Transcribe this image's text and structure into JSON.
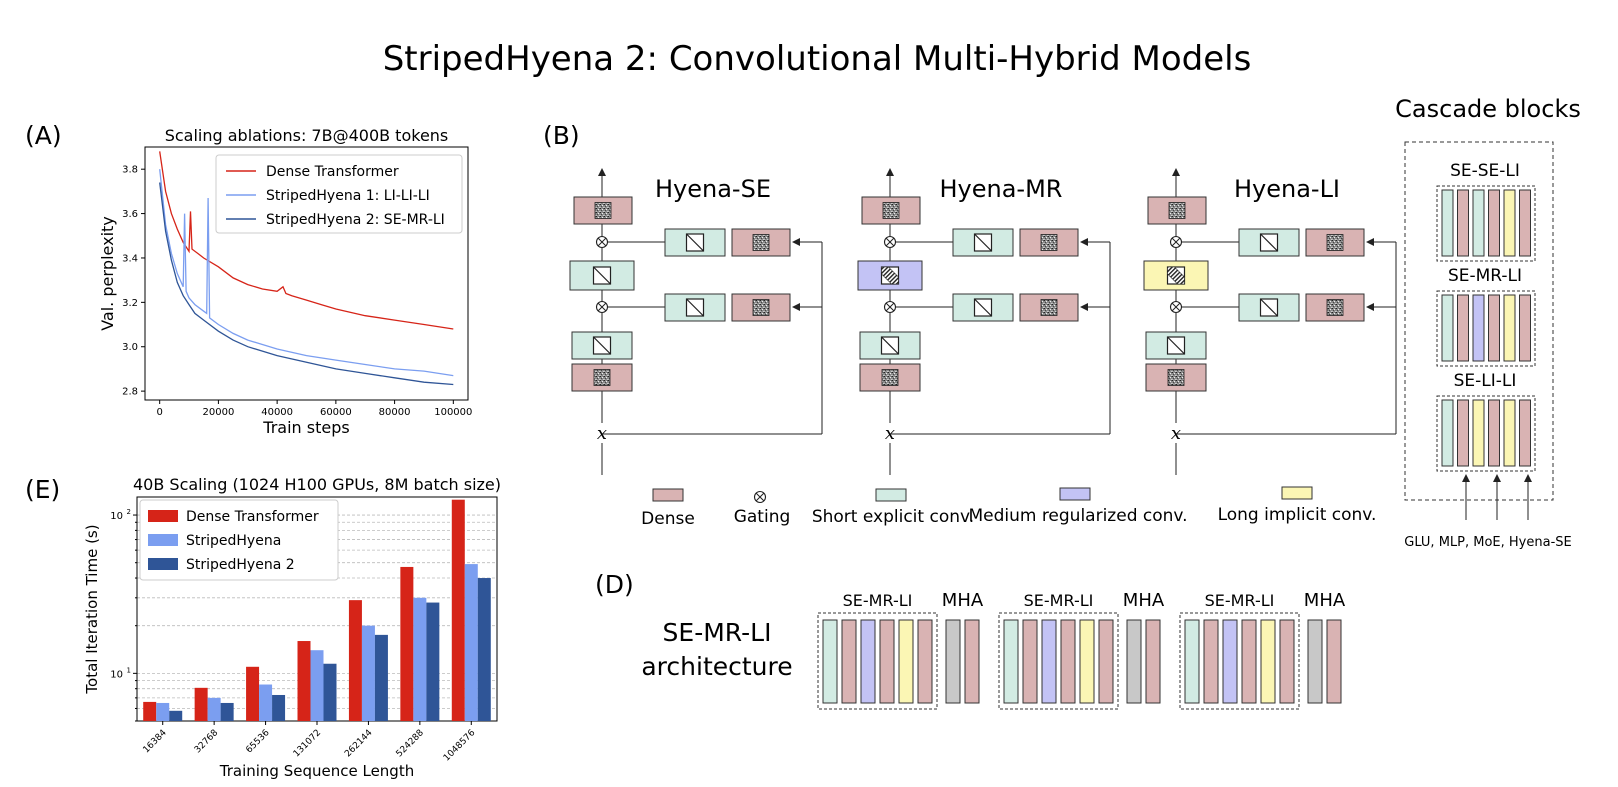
{
  "title": "StripedHyena 2: Convolutional Multi-Hybrid Models",
  "panels": {
    "a": "(A)",
    "b": "(B)",
    "d": "(D)",
    "e": "(E)"
  },
  "colors": {
    "dense": "#d9b3b3",
    "short_explicit": "#d2ebe3",
    "medium_regularized": "#c3c3f5",
    "long_implicit": "#fbf6b4",
    "mha": "#c8c8c8",
    "red": "#d62418",
    "light_blue": "#7b9ef0",
    "dark_blue": "#2f5597"
  },
  "chart_data": [
    {
      "type": "line",
      "title": "Scaling ablations: 7B@400B tokens",
      "xlabel": "Train steps",
      "ylabel": "Val. perplexity",
      "xlim": [
        -5000,
        105000
      ],
      "ylim": [
        2.76,
        3.9
      ],
      "xticks": [
        "0",
        "20000",
        "40000",
        "60000",
        "80000",
        "100000"
      ],
      "yticks": [
        "2.8",
        "3.0",
        "3.2",
        "3.4",
        "3.6",
        "3.8"
      ],
      "legend_position": "top-right",
      "series": [
        {
          "name": "Dense Transformer",
          "color": "#d62418",
          "x": [
            0,
            2000,
            4000,
            6000,
            8000,
            9000,
            10000,
            10500,
            11000,
            13000,
            15000,
            20000,
            25000,
            30000,
            35000,
            40000,
            42000,
            43000,
            45000,
            50000,
            55000,
            60000,
            70000,
            80000,
            90000,
            100000
          ],
          "y": [
            3.88,
            3.7,
            3.6,
            3.53,
            3.47,
            3.45,
            3.43,
            3.61,
            3.44,
            3.42,
            3.4,
            3.36,
            3.31,
            3.28,
            3.26,
            3.25,
            3.27,
            3.24,
            3.23,
            3.21,
            3.19,
            3.17,
            3.14,
            3.12,
            3.1,
            3.08
          ]
        },
        {
          "name": "StripedHyena 1: LI-LI-LI",
          "color": "#7b9ef0",
          "x": [
            0,
            2000,
            4000,
            6000,
            8000,
            8500,
            9000,
            10000,
            12000,
            15000,
            16000,
            16500,
            17000,
            20000,
            25000,
            30000,
            40000,
            50000,
            60000,
            70000,
            80000,
            90000,
            100000
          ],
          "y": [
            3.8,
            3.55,
            3.42,
            3.33,
            3.27,
            3.6,
            3.25,
            3.22,
            3.19,
            3.16,
            3.15,
            3.67,
            3.13,
            3.1,
            3.06,
            3.03,
            2.99,
            2.96,
            2.94,
            2.92,
            2.9,
            2.89,
            2.87
          ]
        },
        {
          "name": "StripedHyena 2: SE-MR-LI",
          "color": "#2f5597",
          "x": [
            0,
            2000,
            4000,
            6000,
            8000,
            10000,
            12000,
            15000,
            20000,
            25000,
            30000,
            40000,
            50000,
            60000,
            70000,
            80000,
            90000,
            100000
          ],
          "y": [
            3.74,
            3.52,
            3.39,
            3.29,
            3.23,
            3.19,
            3.15,
            3.12,
            3.07,
            3.03,
            3.0,
            2.96,
            2.93,
            2.9,
            2.88,
            2.86,
            2.84,
            2.83
          ]
        }
      ]
    },
    {
      "type": "bar",
      "title": "40B Scaling (1024 H100 GPUs, 8M batch size)",
      "xlabel": "Training Sequence Length",
      "ylabel": "Total Iteration Time (s)",
      "yscale": "log",
      "ylim": [
        5,
        130
      ],
      "ytick_labels": [
        "10^1",
        "10^2"
      ],
      "categories": [
        "16384",
        "32768",
        "65536",
        "131072",
        "262144",
        "524288",
        "1048576"
      ],
      "legend_position": "top-left",
      "series": [
        {
          "name": "Dense Transformer",
          "color": "#d62418",
          "values": [
            6.6,
            8.1,
            11,
            16,
            29,
            47,
            125
          ]
        },
        {
          "name": "StripedHyena",
          "color": "#7b9ef0",
          "values": [
            6.5,
            7,
            8.5,
            14,
            20,
            30,
            49
          ]
        },
        {
          "name": "StripedHyena 2",
          "color": "#2f5597",
          "values": [
            5.8,
            6.5,
            7.3,
            11.5,
            17.5,
            28,
            40
          ]
        }
      ]
    }
  ],
  "diagram_b": {
    "blocks": [
      {
        "name": "Hyena-SE",
        "inner_type": "short_explicit"
      },
      {
        "name": "Hyena-MR",
        "inner_type": "medium_regularized"
      },
      {
        "name": "Hyena-LI",
        "inner_type": "long_implicit"
      }
    ],
    "x_label": "x",
    "legend": [
      {
        "label": "Dense",
        "type": "dense"
      },
      {
        "label": "Gating",
        "type": "gating"
      },
      {
        "label": "Short explicit conv.",
        "type": "short_explicit"
      },
      {
        "label": "Medium regularized conv.",
        "type": "medium_regularized"
      },
      {
        "label": "Long implicit conv.",
        "type": "long_implicit"
      }
    ]
  },
  "cascade": {
    "title": "Cascade blocks",
    "groups": [
      {
        "label": "SE-SE-LI",
        "bars": [
          "short_explicit",
          "dense",
          "short_explicit",
          "dense",
          "long_implicit",
          "dense"
        ]
      },
      {
        "label": "SE-MR-LI",
        "bars": [
          "short_explicit",
          "dense",
          "medium_regularized",
          "dense",
          "long_implicit",
          "dense"
        ]
      },
      {
        "label": "SE-LI-LI",
        "bars": [
          "short_explicit",
          "dense",
          "long_implicit",
          "dense",
          "long_implicit",
          "dense"
        ]
      }
    ],
    "footer": "GLU, MLP, MoE, Hyena-SE"
  },
  "arch_d": {
    "title_line1": "SE-MR-LI",
    "title_line2": "architecture",
    "units": [
      {
        "label": "SE-MR-LI",
        "bars": [
          "short_explicit",
          "dense",
          "medium_regularized",
          "dense",
          "long_implicit",
          "dense"
        ]
      },
      {
        "label": "MHA",
        "bars": [
          "mha",
          "dense"
        ]
      },
      {
        "label": "SE-MR-LI",
        "bars": [
          "short_explicit",
          "dense",
          "medium_regularized",
          "dense",
          "long_implicit",
          "dense"
        ]
      },
      {
        "label": "MHA",
        "bars": [
          "mha",
          "dense"
        ]
      },
      {
        "label": "SE-MR-LI",
        "bars": [
          "short_explicit",
          "dense",
          "medium_regularized",
          "dense",
          "long_implicit",
          "dense"
        ]
      },
      {
        "label": "MHA",
        "bars": [
          "mha",
          "dense"
        ]
      }
    ]
  }
}
